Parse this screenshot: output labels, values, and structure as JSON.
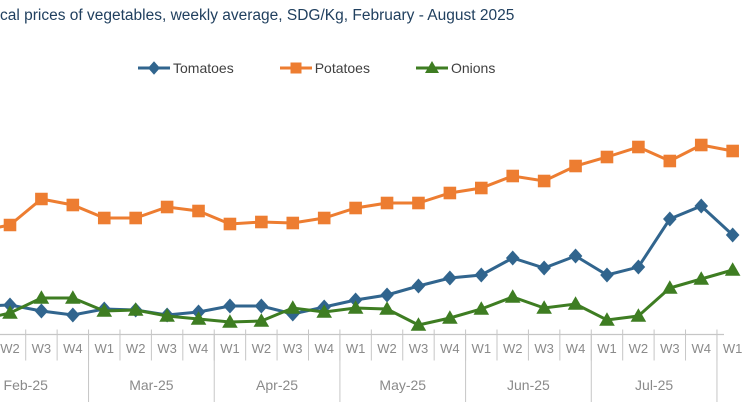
{
  "title": "cal prices of vegetables, weekly average, SDG/Kg, February - August 2025",
  "title_note": "left edge of title cropped in screenshot",
  "colors": {
    "title_text": "#21405F",
    "legend_text": "#404040",
    "axis_line": "#C6C6C6",
    "axis_label_text": "#8A8A8A",
    "tomatoes": "#31658E",
    "potatoes": "#ED7D31",
    "onions": "#3E7D22"
  },
  "chart_data": {
    "type": "line",
    "title": "cal prices of vegetables, weekly average, SDG/Kg, February - August 2025",
    "legend_position": "top",
    "grid": false,
    "y_axis_visible": false,
    "note": "y-axis is cropped out of the screenshot; values are estimated marker heights in pixels above the x-axis baseline",
    "week_labels": [
      "W2",
      "W3",
      "W4",
      "W1",
      "W2",
      "W3",
      "W4",
      "W1",
      "W2",
      "W3",
      "W4",
      "W1",
      "W2",
      "W3",
      "W4",
      "W1",
      "W2",
      "W3",
      "W4",
      "W1",
      "W2",
      "W3",
      "W4",
      "W1"
    ],
    "months": [
      {
        "label": "Feb-25",
        "weeks": 4
      },
      {
        "label": "Mar-25",
        "weeks": 4
      },
      {
        "label": "Apr-25",
        "weeks": 4
      },
      {
        "label": "May-25",
        "weeks": 4
      },
      {
        "label": "Jun-25",
        "weeks": 4
      },
      {
        "label": "Jul-25",
        "weeks": 4
      },
      {
        "label": "",
        "weeks": 1
      }
    ],
    "series": [
      {
        "name": "Tomatoes",
        "color": "#31658E",
        "marker": "diamond",
        "left_edge_value": 28,
        "values": [
          29,
          23,
          19,
          25,
          24,
          19,
          22,
          28,
          28,
          20,
          27,
          34,
          39,
          48,
          56,
          59,
          76,
          66,
          78,
          59,
          67,
          115,
          128,
          99
        ]
      },
      {
        "name": "Potatoes",
        "color": "#ED7D31",
        "marker": "square",
        "left_edge_value": 103,
        "values": [
          109,
          135,
          129,
          116,
          116,
          127,
          123,
          110,
          112,
          111,
          116,
          126,
          131,
          131,
          141,
          146,
          158,
          153,
          168,
          177,
          187,
          173,
          189,
          183
        ]
      },
      {
        "name": "Onions",
        "color": "#3E7D22",
        "marker": "triangle",
        "left_edge_value": 14,
        "values": [
          21,
          36,
          36,
          23,
          24,
          18,
          15,
          12,
          13,
          26,
          22,
          26,
          25,
          9,
          16,
          25,
          37,
          26,
          30,
          14,
          18,
          46,
          55,
          64
        ]
      }
    ],
    "layout": {
      "baseline_y": 334,
      "x_start": 10,
      "x_step": 31.42,
      "first_month_weeks_offscreen": 1,
      "week_row_bottom": 360.5,
      "month_row_bottom": 402
    }
  }
}
